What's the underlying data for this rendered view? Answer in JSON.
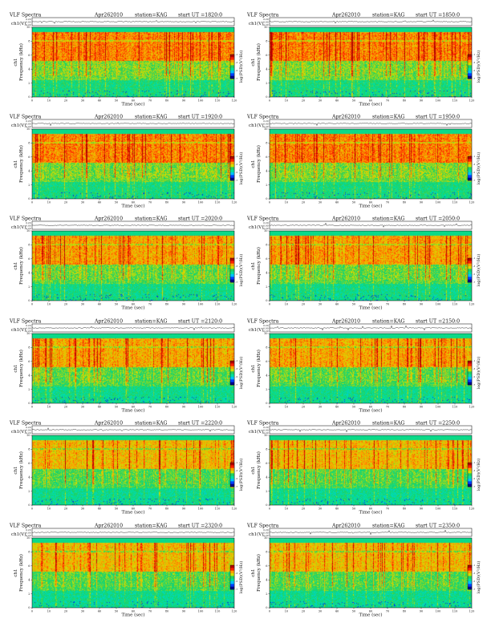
{
  "header_labels": {
    "prefix": "VLF Spectra",
    "date": "Apr262010",
    "station": "station=KAG",
    "ut_prefix": "start  UT  ="
  },
  "chart_data": [
    {
      "type": "heatmap",
      "title": "VLF Spectra",
      "date": "Apr262010",
      "station": "station=KAG",
      "start_ut": "1820:0",
      "xlabel": "Time  (sec)",
      "ylabel": "Frequency  (kHz)",
      "ylabel_channel": "ch1",
      "waveform_label": "ch1(V)",
      "waveform_ticks": [
        "0.20",
        "0.00",
        "-0.20"
      ],
      "xlim": [
        0,
        120
      ],
      "ylim": [
        0,
        10
      ],
      "xticks": [
        0,
        10,
        20,
        30,
        40,
        50,
        60,
        70,
        80,
        90,
        100,
        110,
        120
      ],
      "yticks": [
        0,
        2,
        4,
        6,
        8,
        10
      ],
      "colorbar_label": "log(PSD)(V²/Hz)",
      "colorbar_ticks": [
        "-1",
        "-3",
        "-5",
        "-7"
      ],
      "colorscale": [
        "#00008b",
        "#0040ff",
        "#00c0ff",
        "#00e0a0",
        "#20d060",
        "#d0e000",
        "#ffa000",
        "#ff2000",
        "#b00000"
      ]
    },
    {
      "type": "heatmap",
      "title": "VLF Spectra",
      "date": "Apr262010",
      "station": "station=KAG",
      "start_ut": "1850:0",
      "xlabel": "Time  (sec)",
      "ylabel": "Frequency  (kHz)",
      "ylabel_channel": "ch1",
      "waveform_label": "ch1(V)",
      "waveform_ticks": [
        "0.20",
        "0.00",
        "-0.20"
      ],
      "xlim": [
        0,
        120
      ],
      "ylim": [
        0,
        10
      ],
      "xticks": [
        0,
        10,
        20,
        30,
        40,
        50,
        60,
        70,
        80,
        90,
        100,
        110,
        120
      ],
      "yticks": [
        0,
        2,
        4,
        6,
        8,
        10
      ],
      "colorbar_label": "log(PSD)(V²/Hz)",
      "colorbar_ticks": [
        "-1",
        "-3",
        "-5",
        "-7"
      ],
      "colorscale": [
        "#00008b",
        "#0040ff",
        "#00c0ff",
        "#00e0a0",
        "#20d060",
        "#d0e000",
        "#ffa000",
        "#ff2000",
        "#b00000"
      ]
    },
    {
      "type": "heatmap",
      "title": "VLF Spectra",
      "date": "Apr262010",
      "station": "station=KAG",
      "start_ut": "1920:0",
      "xlabel": "Time  (sec)",
      "ylabel": "Frequency  (kHz)",
      "ylabel_channel": "ch1",
      "waveform_label": "ch1(V)",
      "waveform_ticks": [
        "0.20",
        "0.00",
        "-0.20"
      ],
      "xlim": [
        0,
        120
      ],
      "ylim": [
        0,
        10
      ],
      "xticks": [
        0,
        10,
        20,
        30,
        40,
        50,
        60,
        70,
        80,
        90,
        100,
        110,
        120
      ],
      "yticks": [
        0,
        2,
        4,
        6,
        8,
        10
      ],
      "colorbar_label": "log(PSD)(V²/Hz)",
      "colorbar_ticks": [
        "-1",
        "-3",
        "-5",
        "-7"
      ],
      "colorscale": [
        "#00008b",
        "#0040ff",
        "#00c0ff",
        "#00e0a0",
        "#20d060",
        "#d0e000",
        "#ffa000",
        "#ff2000",
        "#b00000"
      ]
    },
    {
      "type": "heatmap",
      "title": "VLF Spectra",
      "date": "Apr262010",
      "station": "station=KAG",
      "start_ut": "1950:0",
      "xlabel": "Time  (sec)",
      "ylabel": "Frequency  (kHz)",
      "ylabel_channel": "ch1",
      "waveform_label": "ch1(V)",
      "waveform_ticks": [
        "0.20",
        "0.00",
        "-0.20"
      ],
      "xlim": [
        0,
        120
      ],
      "ylim": [
        0,
        10
      ],
      "xticks": [
        0,
        10,
        20,
        30,
        40,
        50,
        60,
        70,
        80,
        90,
        100,
        110,
        120
      ],
      "yticks": [
        0,
        2,
        4,
        6,
        8,
        10
      ],
      "colorbar_label": "log(PSD)(V²/Hz)",
      "colorbar_ticks": [
        "-1",
        "-3",
        "-5",
        "-7"
      ],
      "colorscale": [
        "#00008b",
        "#0040ff",
        "#00c0ff",
        "#00e0a0",
        "#20d060",
        "#d0e000",
        "#ffa000",
        "#ff2000",
        "#b00000"
      ]
    },
    {
      "type": "heatmap",
      "title": "VLF Spectra",
      "date": "Apr262010",
      "station": "station=KAG",
      "start_ut": "2020:0",
      "xlabel": "Time  (sec)",
      "ylabel": "Frequency  (kHz)",
      "ylabel_channel": "ch1",
      "waveform_label": "ch1(V)",
      "waveform_ticks": [
        "0.20",
        "0.00",
        "-0.20"
      ],
      "xlim": [
        0,
        120
      ],
      "ylim": [
        0,
        10
      ],
      "xticks": [
        0,
        10,
        20,
        30,
        40,
        50,
        60,
        70,
        80,
        90,
        100,
        110,
        120
      ],
      "yticks": [
        0,
        2,
        4,
        6,
        8,
        10
      ],
      "colorbar_label": "log(PSD)(V²/Hz)",
      "colorbar_ticks": [
        "-1",
        "-3",
        "-5",
        "-7"
      ],
      "colorscale": [
        "#00008b",
        "#0040ff",
        "#00c0ff",
        "#00e0a0",
        "#20d060",
        "#d0e000",
        "#ffa000",
        "#ff2000",
        "#b00000"
      ]
    },
    {
      "type": "heatmap",
      "title": "VLF Spectra",
      "date": "Apr262010",
      "station": "station=KAG",
      "start_ut": "2050:0",
      "xlabel": "Time  (sec)",
      "ylabel": "Frequency  (kHz)",
      "ylabel_channel": "ch1",
      "waveform_label": "ch1(V)",
      "waveform_ticks": [
        "0.20",
        "0.00",
        "-0.20"
      ],
      "xlim": [
        0,
        120
      ],
      "ylim": [
        0,
        10
      ],
      "xticks": [
        0,
        10,
        20,
        30,
        40,
        50,
        60,
        70,
        80,
        90,
        100,
        110,
        120
      ],
      "yticks": [
        0,
        2,
        4,
        6,
        8,
        10
      ],
      "colorbar_label": "log(PSD)(V²/Hz)",
      "colorbar_ticks": [
        "-1",
        "-3",
        "-5",
        "-7"
      ],
      "colorscale": [
        "#00008b",
        "#0040ff",
        "#00c0ff",
        "#00e0a0",
        "#20d060",
        "#d0e000",
        "#ffa000",
        "#ff2000",
        "#b00000"
      ]
    },
    {
      "type": "heatmap",
      "title": "VLF Spectra",
      "date": "Apr262010",
      "station": "station=KAG",
      "start_ut": "2120:0",
      "xlabel": "Time  (sec)",
      "ylabel": "Frequency  (kHz)",
      "ylabel_channel": "ch1",
      "waveform_label": "ch1(V)",
      "waveform_ticks": [
        "0.20",
        "0.00",
        "-0.20"
      ],
      "xlim": [
        0,
        120
      ],
      "ylim": [
        0,
        10
      ],
      "xticks": [
        0,
        10,
        20,
        30,
        40,
        50,
        60,
        70,
        80,
        90,
        100,
        110,
        120
      ],
      "yticks": [
        0,
        2,
        4,
        6,
        8,
        10
      ],
      "colorbar_label": "log(PSD)(V²/Hz)",
      "colorbar_ticks": [
        "-1",
        "-3",
        "-5",
        "-7"
      ],
      "colorscale": [
        "#00008b",
        "#0040ff",
        "#00c0ff",
        "#00e0a0",
        "#20d060",
        "#d0e000",
        "#ffa000",
        "#ff2000",
        "#b00000"
      ]
    },
    {
      "type": "heatmap",
      "title": "VLF Spectra",
      "date": "Apr262010",
      "station": "station=KAG",
      "start_ut": "2150:0",
      "xlabel": "Time  (sec)",
      "ylabel": "Frequency  (kHz)",
      "ylabel_channel": "ch1",
      "waveform_label": "ch1(V)",
      "waveform_ticks": [
        "0.20",
        "0.00",
        "-0.20"
      ],
      "xlim": [
        0,
        120
      ],
      "ylim": [
        0,
        10
      ],
      "xticks": [
        0,
        10,
        20,
        30,
        40,
        50,
        60,
        70,
        80,
        90,
        100,
        110,
        120
      ],
      "yticks": [
        0,
        2,
        4,
        6,
        8,
        10
      ],
      "colorbar_label": "log(PSD)(V²/Hz)",
      "colorbar_ticks": [
        "-1",
        "-3",
        "-5",
        "-7"
      ],
      "colorscale": [
        "#00008b",
        "#0040ff",
        "#00c0ff",
        "#00e0a0",
        "#20d060",
        "#d0e000",
        "#ffa000",
        "#ff2000",
        "#b00000"
      ]
    },
    {
      "type": "heatmap",
      "title": "VLF Spectra",
      "date": "Apr262010",
      "station": "station=KAG",
      "start_ut": "2220:0",
      "xlabel": "Time  (sec)",
      "ylabel": "Frequency  (kHz)",
      "ylabel_channel": "ch1",
      "waveform_label": "ch1(V)",
      "waveform_ticks": [
        "0.20",
        "0.00",
        "-0.20"
      ],
      "xlim": [
        0,
        120
      ],
      "ylim": [
        0,
        10
      ],
      "xticks": [
        0,
        10,
        20,
        30,
        40,
        50,
        60,
        70,
        80,
        90,
        100,
        110,
        120
      ],
      "yticks": [
        0,
        2,
        4,
        6,
        8,
        10
      ],
      "colorbar_label": "log(PSD)(V²/Hz)",
      "colorbar_ticks": [
        "-1",
        "-3",
        "-5",
        "-7"
      ],
      "colorscale": [
        "#00008b",
        "#0040ff",
        "#00c0ff",
        "#00e0a0",
        "#20d060",
        "#d0e000",
        "#ffa000",
        "#ff2000",
        "#b00000"
      ]
    },
    {
      "type": "heatmap",
      "title": "VLF Spectra",
      "date": "Apr262010",
      "station": "station=KAG",
      "start_ut": "2250:0",
      "xlabel": "Time  (sec)",
      "ylabel": "Frequency  (kHz)",
      "ylabel_channel": "ch1",
      "waveform_label": "ch1(V)",
      "waveform_ticks": [
        "0.20",
        "0.00",
        "-0.20"
      ],
      "xlim": [
        0,
        120
      ],
      "ylim": [
        0,
        10
      ],
      "xticks": [
        0,
        10,
        20,
        30,
        40,
        50,
        60,
        70,
        80,
        90,
        100,
        110,
        120
      ],
      "yticks": [
        0,
        2,
        4,
        6,
        8,
        10
      ],
      "colorbar_label": "log(PSD)(V²/Hz)",
      "colorbar_ticks": [
        "-1",
        "-3",
        "-5",
        "-7"
      ],
      "colorscale": [
        "#00008b",
        "#0040ff",
        "#00c0ff",
        "#00e0a0",
        "#20d060",
        "#d0e000",
        "#ffa000",
        "#ff2000",
        "#b00000"
      ]
    },
    {
      "type": "heatmap",
      "title": "VLF Spectra",
      "date": "Apr262010",
      "station": "station=KAG",
      "start_ut": "2320:0",
      "xlabel": "Time  (sec)",
      "ylabel": "Frequency  (kHz)",
      "ylabel_channel": "ch1",
      "waveform_label": "ch1(V)",
      "waveform_ticks": [
        "0.20",
        "0.00",
        "-0.20"
      ],
      "xlim": [
        0,
        120
      ],
      "ylim": [
        0,
        10
      ],
      "xticks": [
        0,
        10,
        20,
        30,
        40,
        50,
        60,
        70,
        80,
        90,
        100,
        110,
        120
      ],
      "yticks": [
        0,
        2,
        4,
        6,
        8,
        10
      ],
      "colorbar_label": "log(PSD)(V²/Hz)",
      "colorbar_ticks": [
        "-1",
        "-3",
        "-5",
        "-7"
      ],
      "colorscale": [
        "#00008b",
        "#0040ff",
        "#00c0ff",
        "#00e0a0",
        "#20d060",
        "#d0e000",
        "#ffa000",
        "#ff2000",
        "#b00000"
      ]
    },
    {
      "type": "heatmap",
      "title": "VLF Spectra",
      "date": "Apr262010",
      "station": "station=KAG",
      "start_ut": "2350:0",
      "xlabel": "Time  (sec)",
      "ylabel": "Frequency  (kHz)",
      "ylabel_channel": "ch1",
      "waveform_label": "ch1(V)",
      "waveform_ticks": [
        "0.20",
        "0.00",
        "-0.20"
      ],
      "xlim": [
        0,
        120
      ],
      "ylim": [
        0,
        10
      ],
      "xticks": [
        0,
        10,
        20,
        30,
        40,
        50,
        60,
        70,
        80,
        90,
        100,
        110,
        120
      ],
      "yticks": [
        0,
        2,
        4,
        6,
        8,
        10
      ],
      "colorbar_label": "log(PSD)(V²/Hz)",
      "colorbar_ticks": [
        "-1",
        "-3",
        "-5",
        "-7"
      ],
      "colorscale": [
        "#00008b",
        "#0040ff",
        "#00c0ff",
        "#00e0a0",
        "#20d060",
        "#d0e000",
        "#ffa000",
        "#ff2000",
        "#b00000"
      ]
    }
  ]
}
